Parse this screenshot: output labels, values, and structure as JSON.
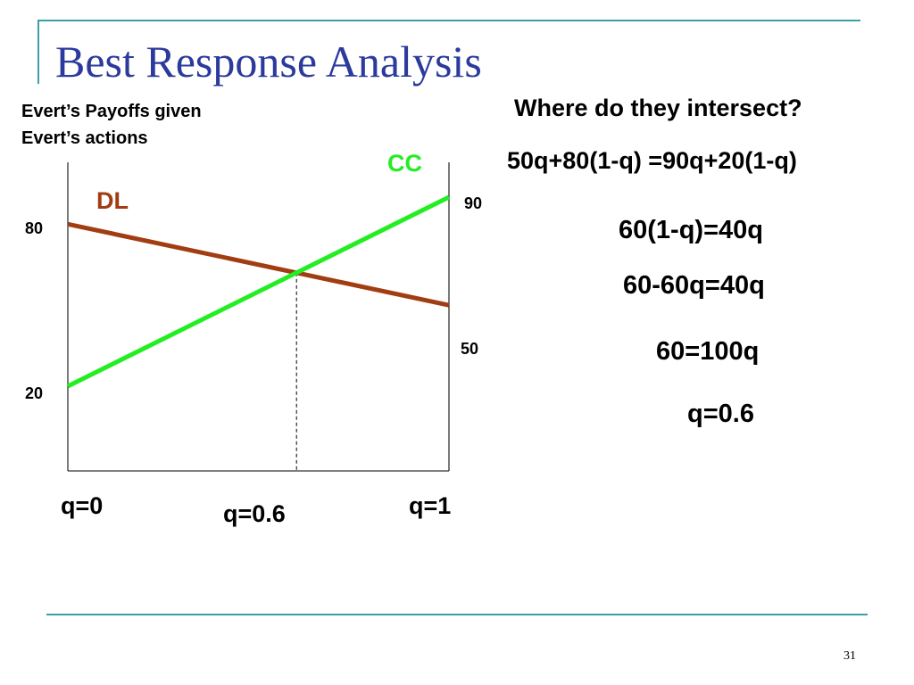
{
  "slide": {
    "title": "Best Response Analysis",
    "subtitle_line1": "Evert’s Payoffs given",
    "subtitle_line2": "Evert’s actions",
    "question": "Where do they intersect?",
    "equations": [
      "50q+80(1-q) =90q+20(1-q)",
      "60(1-q)=40q",
      "60-60q=40q",
      "60=100q",
      "q=0.6"
    ],
    "page_number": "31"
  },
  "colors": {
    "title": "#2b3a9c",
    "cc": "#22ee22",
    "dl": "#a23d12",
    "frame": "#3aa0a6"
  },
  "chart_data": {
    "type": "line",
    "x": [
      0,
      1
    ],
    "series": [
      {
        "name": "CC",
        "values": [
          20,
          90
        ],
        "color": "#22ee22"
      },
      {
        "name": "DL",
        "values": [
          80,
          50
        ],
        "color": "#a23d12"
      }
    ],
    "left_tick_labels": [
      "80",
      "20"
    ],
    "right_tick_labels": [
      "90",
      "50"
    ],
    "x_tick_labels": [
      "q=0",
      "q=0.6",
      "q=1"
    ],
    "intersection_x": 0.6,
    "grid": false,
    "legend": "inline labels"
  }
}
